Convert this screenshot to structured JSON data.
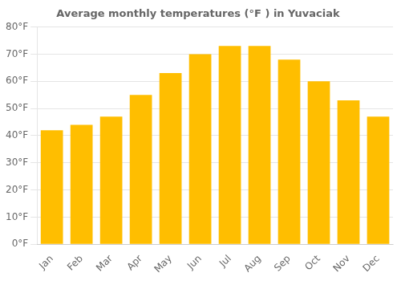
{
  "chart_data": {
    "type": "bar",
    "title": "Average monthly temperatures (°F ) in Yuvacı̇ak",
    "categories": [
      "Jan",
      "Feb",
      "Mar",
      "Apr",
      "May",
      "Jun",
      "Jul",
      "Aug",
      "Sep",
      "Oct",
      "Nov",
      "Dec"
    ],
    "values": [
      42,
      44,
      47,
      55,
      63,
      70,
      73,
      73,
      68,
      60,
      53,
      47
    ],
    "color": "#FFBE00",
    "ylim": [
      0,
      80
    ],
    "yticks": [
      {
        "value": 0,
        "label": "0°F"
      },
      {
        "value": 10,
        "label": "10°F"
      },
      {
        "value": 20,
        "label": "20°F"
      },
      {
        "value": 30,
        "label": "30°F"
      },
      {
        "value": 40,
        "label": "40°F"
      },
      {
        "value": 50,
        "label": "50°F"
      },
      {
        "value": 60,
        "label": "60°F"
      },
      {
        "value": 70,
        "label": "70°F"
      },
      {
        "value": 80,
        "label": "80°F"
      }
    ],
    "grid": true
  }
}
